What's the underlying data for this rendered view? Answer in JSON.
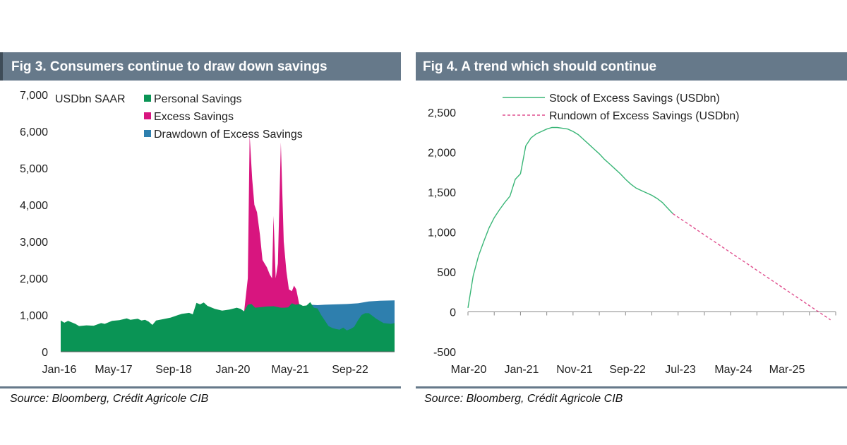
{
  "panels": [
    {
      "title": "Fig 3. Consumers continue to draw down savings",
      "source": "Source: Bloomberg, Crédit Agricole CIB"
    },
    {
      "title": "Fig 4. A trend which should continue",
      "source": "Source: Bloomberg, Crédit Agricole CIB"
    }
  ],
  "chart_data": [
    {
      "type": "area",
      "title": "Fig 3. Consumers continue to draw down savings",
      "unit_label": "USDbn SAAR",
      "ylim": [
        0,
        7000
      ],
      "yticks": [
        0,
        1000,
        2000,
        3000,
        4000,
        5000,
        6000,
        7000
      ],
      "ytick_labels": [
        "0",
        "1,000",
        "2,000",
        "3,000",
        "4,000",
        "5,000",
        "6,000",
        "7,000"
      ],
      "xtick_labels": [
        "Jan-16",
        "May-17",
        "Sep-18",
        "Jan-20",
        "May-21",
        "Sep-22"
      ],
      "x_range": [
        0,
        91
      ],
      "legend": [
        {
          "name": "Personal Savings",
          "color": "#0a9455"
        },
        {
          "name": "Excess Savings",
          "color": "#d8157f"
        },
        {
          "name": "Drawdown of Excess Savings",
          "color": "#2e7fae"
        }
      ],
      "series": [
        {
          "name": "Personal Savings",
          "color": "#0a9455",
          "points": [
            [
              0,
              850
            ],
            [
              1,
              790
            ],
            [
              2,
              840
            ],
            [
              4,
              760
            ],
            [
              5,
              700
            ],
            [
              7,
              720
            ],
            [
              9,
              710
            ],
            [
              11,
              780
            ],
            [
              12,
              760
            ],
            [
              14,
              840
            ],
            [
              16,
              860
            ],
            [
              18,
              910
            ],
            [
              19,
              870
            ],
            [
              21,
              900
            ],
            [
              22,
              850
            ],
            [
              23,
              870
            ],
            [
              24,
              820
            ],
            [
              25,
              730
            ],
            [
              26,
              850
            ],
            [
              28,
              890
            ],
            [
              30,
              930
            ],
            [
              32,
              1000
            ],
            [
              33,
              1030
            ],
            [
              35,
              1060
            ],
            [
              36,
              1020
            ],
            [
              37,
              1330
            ],
            [
              38,
              1290
            ],
            [
              39,
              1340
            ],
            [
              40,
              1250
            ],
            [
              42,
              1170
            ],
            [
              44,
              1120
            ],
            [
              46,
              1150
            ],
            [
              48,
              1200
            ],
            [
              49,
              1170
            ],
            [
              50,
              1100
            ],
            [
              51,
              1280
            ],
            [
              52,
              1300
            ],
            [
              53,
              1200
            ],
            [
              54,
              1210
            ],
            [
              56,
              1230
            ],
            [
              58,
              1240
            ],
            [
              60,
              1200
            ],
            [
              61,
              1200
            ],
            [
              62,
              1210
            ],
            [
              63,
              1320
            ],
            [
              64,
              1280
            ],
            [
              65,
              1300
            ],
            [
              66,
              1250
            ],
            [
              67,
              1260
            ],
            [
              68,
              1350
            ],
            [
              69,
              1200
            ],
            [
              70,
              1180
            ],
            [
              71,
              1000
            ],
            [
              72,
              850
            ],
            [
              73,
              700
            ],
            [
              74,
              650
            ],
            [
              75,
              620
            ],
            [
              76,
              600
            ],
            [
              77,
              660
            ],
            [
              78,
              580
            ],
            [
              79,
              620
            ],
            [
              80,
              680
            ],
            [
              81,
              850
            ],
            [
              82,
              1000
            ],
            [
              83,
              1050
            ],
            [
              84,
              1050
            ],
            [
              86,
              900
            ],
            [
              88,
              780
            ],
            [
              90,
              760
            ],
            [
              91,
              780
            ]
          ]
        },
        {
          "name": "Excess Savings",
          "color": "#d8157f",
          "points": [
            [
              50,
              1100
            ],
            [
              51,
              2000
            ],
            [
              51.5,
              5900
            ],
            [
              52.2,
              4700
            ],
            [
              52.8,
              4000
            ],
            [
              53.5,
              3800
            ],
            [
              54.3,
              3200
            ],
            [
              55,
              2500
            ],
            [
              55.6,
              2400
            ],
            [
              56.2,
              2300
            ],
            [
              57,
              2100
            ],
            [
              57.6,
              2000
            ],
            [
              58,
              3700
            ],
            [
              58.6,
              2000
            ],
            [
              59.2,
              2400
            ],
            [
              60,
              5700
            ],
            [
              60.8,
              3000
            ],
            [
              61.5,
              2200
            ],
            [
              62.2,
              1700
            ],
            [
              63,
              1650
            ],
            [
              63.6,
              1800
            ],
            [
              64.2,
              1700
            ],
            [
              65,
              1300
            ]
          ]
        },
        {
          "name": "Drawdown of Excess Savings",
          "color": "#2e7fae",
          "points": [
            [
              68,
              1280
            ],
            [
              70,
              1270
            ],
            [
              72,
              1280
            ],
            [
              75,
              1290
            ],
            [
              78,
              1300
            ],
            [
              81,
              1320
            ],
            [
              84,
              1370
            ],
            [
              87,
              1390
            ],
            [
              91,
              1400
            ]
          ]
        }
      ]
    },
    {
      "type": "line",
      "title": "Fig 4. A trend which should continue",
      "ylim": [
        -500,
        2500
      ],
      "yticks": [
        -500,
        0,
        500,
        1000,
        1500,
        2000,
        2500
      ],
      "ytick_labels": [
        "-500",
        "0",
        "500",
        "1,000",
        "1,500",
        "2,000",
        "2,500"
      ],
      "xtick_labels": [
        "Mar-20",
        "Jan-21",
        "Nov-21",
        "Sep-22",
        "Jul-23",
        "May-24",
        "Mar-25"
      ],
      "x_range": [
        0,
        70
      ],
      "legend": [
        {
          "name": "Stock of Excess Savings (USDbn)",
          "color": "#3ab677",
          "style": "solid"
        },
        {
          "name": "Rundown of Excess Savings (USDbn)",
          "color": "#e0508f",
          "style": "dashed"
        }
      ],
      "series": [
        {
          "name": "Stock of Excess Savings (USDbn)",
          "color": "#3ab677",
          "style": "solid",
          "points": [
            [
              0,
              50
            ],
            [
              1,
              450
            ],
            [
              2,
              700
            ],
            [
              3,
              880
            ],
            [
              4,
              1050
            ],
            [
              5,
              1180
            ],
            [
              6,
              1280
            ],
            [
              7,
              1370
            ],
            [
              8,
              1450
            ],
            [
              9,
              1660
            ],
            [
              10,
              1730
            ],
            [
              11,
              2080
            ],
            [
              12,
              2180
            ],
            [
              13,
              2230
            ],
            [
              14,
              2260
            ],
            [
              15,
              2290
            ],
            [
              16,
              2310
            ],
            [
              17,
              2310
            ],
            [
              18,
              2300
            ],
            [
              19,
              2290
            ],
            [
              20,
              2260
            ],
            [
              21,
              2220
            ],
            [
              22,
              2160
            ],
            [
              23,
              2100
            ],
            [
              24,
              2040
            ],
            [
              25,
              1980
            ],
            [
              26,
              1910
            ],
            [
              27,
              1850
            ],
            [
              28,
              1790
            ],
            [
              29,
              1730
            ],
            [
              30,
              1660
            ],
            [
              31,
              1600
            ],
            [
              32,
              1550
            ],
            [
              33,
              1520
            ],
            [
              34,
              1490
            ],
            [
              35,
              1460
            ],
            [
              36,
              1420
            ],
            [
              37,
              1370
            ],
            [
              38,
              1300
            ],
            [
              39,
              1230
            ]
          ]
        },
        {
          "name": "Rundown of Excess Savings (USDbn)",
          "color": "#e0508f",
          "style": "dashed",
          "points": [
            [
              39,
              1230
            ],
            [
              69,
              -100
            ]
          ]
        }
      ]
    }
  ]
}
